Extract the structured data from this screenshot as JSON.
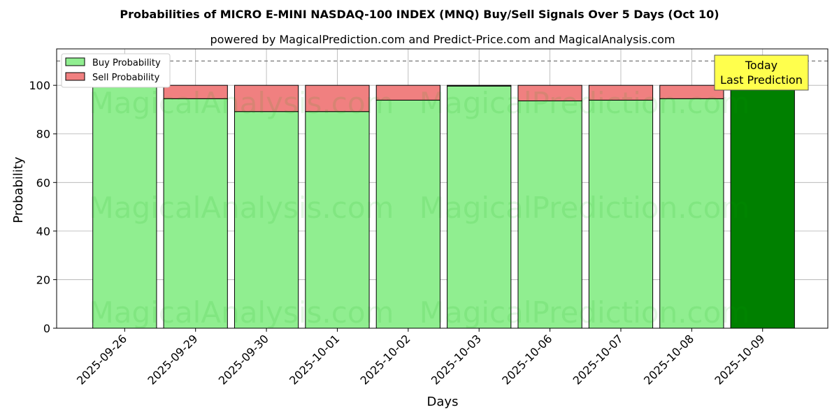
{
  "chart_data": {
    "type": "bar",
    "stacked": true,
    "title": "Probabilities of MICRO E-MINI NASDAQ-100 INDEX (MNQ) Buy/Sell Signals Over 5 Days (Oct 10)",
    "subtitle": "powered by MagicalPrediction.com and Predict-Price.com and MagicalAnalysis.com",
    "xlabel": "Days",
    "ylabel": "Probability",
    "ylim": [
      0,
      115
    ],
    "yticks": [
      0,
      20,
      40,
      60,
      80,
      100
    ],
    "grid": true,
    "legend_position": "top-left",
    "reference_line": 110,
    "categories": [
      "2025-09-26",
      "2025-09-29",
      "2025-09-30",
      "2025-10-01",
      "2025-10-02",
      "2025-10-03",
      "2025-10-06",
      "2025-10-07",
      "2025-10-08",
      "2025-10-09"
    ],
    "series": [
      {
        "name": "Buy Probability",
        "color": "#90ee90",
        "values": [
          100,
          94.5,
          89.2,
          89.2,
          93.9,
          99.7,
          93.6,
          93.9,
          94.5,
          100
        ]
      },
      {
        "name": "Sell Probability",
        "color": "#f08080",
        "values": [
          0,
          5.5,
          10.8,
          10.8,
          6.1,
          0.3,
          6.4,
          6.1,
          5.5,
          0
        ]
      }
    ],
    "highlight": {
      "index": 9,
      "color": "#008000"
    },
    "annotation": {
      "line1": "Today",
      "line2": "Last Prediction",
      "background": "#ffff4d"
    }
  },
  "watermarks": [
    "MagicalAnalysis.com",
    "MagicalPrediction.com"
  ]
}
